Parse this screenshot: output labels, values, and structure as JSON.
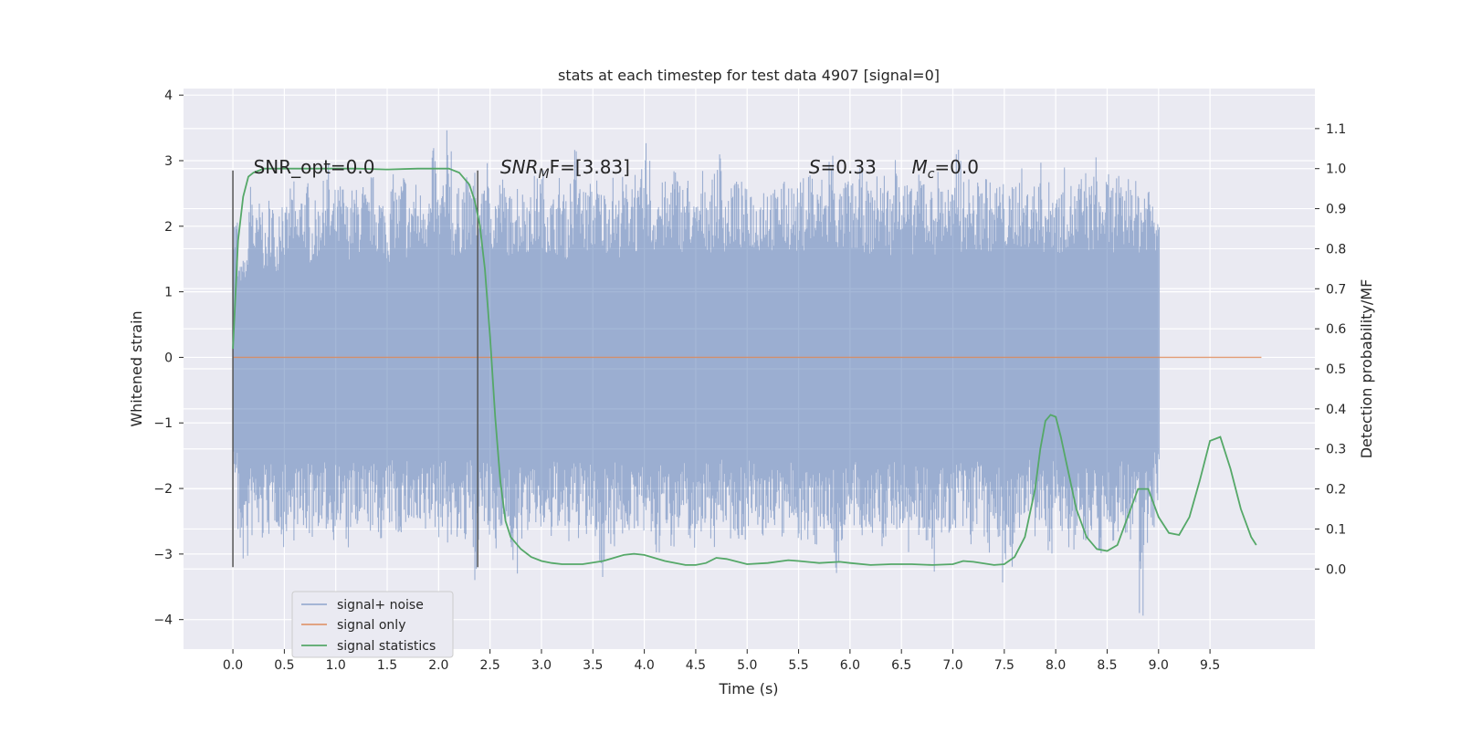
{
  "chart_data": {
    "type": "line",
    "title": "stats at each timestep for test data 4907 [signal=0]",
    "xlabel": "Time (s)",
    "ylabel": "Whitened strain",
    "ylabel_right": "Detection probability/MF",
    "xlim": [
      -0.48,
      10.52
    ],
    "ylim": [
      -4.45,
      4.1
    ],
    "ylim_right": [
      -0.2,
      1.2
    ],
    "x_ticks": [
      0.0,
      0.5,
      1.0,
      1.5,
      2.0,
      2.5,
      3.0,
      3.5,
      4.0,
      4.5,
      5.0,
      5.5,
      6.0,
      6.5,
      7.0,
      7.5,
      8.0,
      8.5,
      9.0,
      9.5
    ],
    "x_tick_labels": [
      "0.0",
      "0.5",
      "1.0",
      "1.5",
      "2.0",
      "2.5",
      "3.0",
      "3.5",
      "4.0",
      "4.5",
      "5.0",
      "5.5",
      "6.0",
      "6.5",
      "7.0",
      "7.5",
      "8.0",
      "8.5",
      "9.0",
      "9.5"
    ],
    "y_ticks": [
      -4,
      -3,
      -2,
      -1,
      0,
      1,
      2,
      3,
      4
    ],
    "y_tick_labels": [
      "−4",
      "−3",
      "−2",
      "−1",
      "0",
      "1",
      "2",
      "3",
      "4"
    ],
    "y2_ticks": [
      0.0,
      0.1,
      0.2,
      0.3,
      0.4,
      0.5,
      0.6,
      0.7,
      0.8,
      0.9,
      1.0,
      1.1
    ],
    "y2_tick_labels": [
      "0.0",
      "0.1",
      "0.2",
      "0.3",
      "0.4",
      "0.5",
      "0.6",
      "0.7",
      "0.8",
      "0.9",
      "1.0",
      "1.1"
    ],
    "grid": true,
    "legend_position": "lower-left",
    "annotations": [
      {
        "text": "SNR_opt=0.0",
        "x": 0.2,
        "y": 2.9,
        "kind": "plain"
      },
      {
        "text": "SNR",
        "sub": "M",
        "tail": "F=[3.83]",
        "x": 2.6,
        "y": 2.9,
        "kind": "math"
      },
      {
        "text": "S",
        "sub": "",
        "tail": "=0.33",
        "x": 5.6,
        "y": 2.9,
        "kind": "math"
      },
      {
        "text": "M",
        "sub": "c",
        "tail": "=0.0",
        "x": 6.6,
        "y": 2.9,
        "kind": "math"
      }
    ],
    "vlines": [
      {
        "x": 0.0,
        "ymin": -3.2,
        "ymax": 2.85
      },
      {
        "x": 2.38,
        "ymin": -3.2,
        "ymax": 2.85
      }
    ],
    "series": [
      {
        "name": "signal+ noise",
        "color": "#4c72b0",
        "axis": "left",
        "envelope_upper": [
          2.2,
          1.4,
          1.5,
          2.7,
          2.2,
          2.4,
          1.9,
          2.5,
          1.9,
          2.6,
          2.3,
          2.7,
          2.3,
          2.6,
          2.7,
          2.2,
          2.4,
          2.7,
          3.0,
          2.5,
          2.6,
          2.7,
          2.4,
          2.6,
          2.6,
          2.7,
          2.5,
          2.8,
          2.6,
          2.5,
          2.3,
          2.8,
          2.6,
          2.9,
          2.4,
          2.7,
          2.6,
          2.8,
          2.6,
          3.2,
          2.6,
          2.8,
          3.5,
          2.4,
          2.6,
          2.8,
          2.7,
          2.9,
          2.5,
          3.2,
          2.7,
          2.6,
          2.8,
          2.7,
          2.5,
          2.8,
          2.6,
          2.7,
          2.5,
          2.8,
          2.9,
          2.7,
          2.5,
          2.6,
          2.8,
          2.4,
          2.8,
          3.3,
          2.7,
          2.6,
          2.7,
          2.8,
          2.6,
          2.7,
          2.8,
          2.5,
          2.8,
          2.7,
          3.0,
          2.6,
          2.9,
          3.3,
          2.5,
          2.8,
          2.7,
          2.6,
          3.1,
          2.8,
          2.7,
          2.8,
          2.4,
          2.6,
          2.9,
          2.7,
          2.8,
          3.2,
          2.7,
          2.6,
          2.9,
          2.7,
          2.6,
          2.8,
          2.5,
          2.7,
          2.8,
          2.7,
          2.6,
          2.9,
          2.7,
          2.8,
          2.6,
          2.7,
          2.8,
          3.0,
          2.6,
          2.8,
          2.7,
          3.3,
          2.7,
          2.6,
          2.8,
          2.7,
          2.6,
          2.9,
          2.7,
          2.6,
          2.8,
          2.9,
          2.7,
          2.6,
          3.7,
          2.8,
          2.7,
          2.6,
          2.8,
          3.0,
          2.7,
          2.6,
          2.9,
          2.8,
          2.7,
          2.6,
          3.4,
          2.7,
          2.8,
          2.6,
          2.7,
          2.9,
          2.7,
          2.6,
          2.8,
          2.7,
          2.5,
          2.8,
          2.9,
          2.6,
          2.8,
          2.7,
          3.0,
          2.6,
          2.7,
          2.8,
          2.6,
          2.9,
          2.7,
          2.6,
          2.8,
          2.9,
          2.7,
          3.1,
          2.6,
          2.8,
          2.7,
          2.9,
          2.6,
          2.8,
          3.0,
          2.7,
          2.6,
          2.8,
          2.7,
          2.6,
          2.9,
          3.2,
          2.7,
          2.8,
          2.6,
          3.0,
          2.7,
          2.8,
          2.6,
          2.7,
          2.9,
          2.8,
          2.6,
          3.0,
          2.7,
          2.8,
          3.1,
          2.6,
          2.4,
          2.2
        ],
        "envelope_lower": [
          -1.9,
          -3.0,
          -3.2,
          -2.8,
          -2.7,
          -2.9,
          -2.6,
          -2.8,
          -2.6,
          -3.0,
          -2.7,
          -2.8,
          -2.6,
          -2.9,
          -2.7,
          -2.8,
          -2.6,
          -2.9,
          -2.7,
          -2.8,
          -2.6,
          -2.7,
          -3.0,
          -2.7,
          -2.8,
          -2.7,
          -2.6,
          -2.7,
          -2.9,
          -2.8,
          -2.7,
          -2.6,
          -2.8,
          -2.7,
          -2.6,
          -2.7,
          -2.9,
          -2.8,
          -2.6,
          -2.7,
          -2.8,
          -2.6,
          -2.9,
          -2.7,
          -2.8,
          -3.0,
          -2.6,
          -3.4,
          -2.8,
          -2.7,
          -2.9,
          -3.1,
          -2.6,
          -2.8,
          -3.0,
          -3.6,
          -2.8,
          -2.7,
          -2.9,
          -2.6,
          -2.8,
          -2.7,
          -2.9,
          -2.6,
          -2.8,
          -3.0,
          -2.7,
          -2.8,
          -2.6,
          -2.9,
          -2.7,
          -2.8,
          -3.6,
          -2.7,
          -2.9,
          -2.6,
          -2.8,
          -2.7,
          -3.0,
          -2.6,
          -2.8,
          -2.7,
          -2.9,
          -3.1,
          -2.7,
          -2.6,
          -2.9,
          -2.8,
          -2.7,
          -2.8,
          -3.2,
          -2.7,
          -2.6,
          -2.8,
          -2.9,
          -2.7,
          -2.6,
          -2.8,
          -2.7,
          -2.9,
          -2.8,
          -2.6,
          -2.7,
          -3.0,
          -2.8,
          -2.7,
          -2.6,
          -2.9,
          -2.8,
          -2.7,
          -2.6,
          -2.8,
          -3.0,
          -2.7,
          -2.9,
          -2.6,
          -2.8,
          -2.7,
          -3.5,
          -2.9,
          -2.6,
          -2.8,
          -2.7,
          -2.9,
          -2.6,
          -2.8,
          -2.7,
          -3.0,
          -2.8,
          -2.6,
          -2.9,
          -2.7,
          -3.1,
          -2.6,
          -2.8,
          -2.7,
          -2.9,
          -3.8,
          -2.6,
          -2.8,
          -2.7,
          -2.9,
          -2.6,
          -2.8,
          -3.0,
          -2.7,
          -2.6,
          -2.9,
          -3.2,
          -2.6,
          -2.8,
          -3.6,
          -2.9,
          -3.3,
          -2.7,
          -2.8,
          -2.6,
          -2.9,
          -2.7,
          -2.8,
          -3.0,
          -2.6,
          -2.8,
          -2.7,
          -2.9,
          -3.1,
          -2.6,
          -2.8,
          -2.7,
          -2.6,
          -3.0,
          -2.8,
          -2.9,
          -2.7,
          -2.6,
          -2.8,
          -3.0,
          -2.7,
          -4.1,
          -2.9,
          -2.6,
          -2.2
        ]
      },
      {
        "name": "signal only",
        "color": "#dd8452",
        "axis": "left",
        "x": [
          0.0,
          10.0
        ],
        "y": [
          0.0,
          0.0
        ]
      },
      {
        "name": "signal statistics",
        "color": "#55a868",
        "axis": "right",
        "x": [
          0.0,
          0.05,
          0.1,
          0.15,
          0.2,
          0.3,
          0.4,
          0.6,
          0.8,
          1.0,
          1.2,
          1.5,
          1.8,
          2.0,
          2.1,
          2.2,
          2.3,
          2.35,
          2.4,
          2.45,
          2.5,
          2.55,
          2.6,
          2.65,
          2.7,
          2.8,
          2.9,
          3.0,
          3.1,
          3.2,
          3.4,
          3.6,
          3.8,
          3.9,
          4.0,
          4.2,
          4.4,
          4.5,
          4.6,
          4.7,
          4.8,
          5.0,
          5.2,
          5.4,
          5.5,
          5.7,
          5.9,
          6.0,
          6.2,
          6.4,
          6.6,
          6.8,
          7.0,
          7.1,
          7.2,
          7.4,
          7.5,
          7.6,
          7.7,
          7.8,
          7.85,
          7.9,
          7.95,
          8.0,
          8.05,
          8.1,
          8.2,
          8.3,
          8.4,
          8.5,
          8.6,
          8.7,
          8.8,
          8.9,
          9.0,
          9.1,
          9.2,
          9.3,
          9.4,
          9.5,
          9.6,
          9.7,
          9.8,
          9.9,
          9.95
        ],
        "y": [
          0.55,
          0.82,
          0.93,
          0.98,
          0.99,
          1.0,
          1.0,
          1.0,
          1.0,
          1.0,
          1.0,
          0.998,
          1.0,
          1.0,
          1.0,
          0.99,
          0.96,
          0.92,
          0.86,
          0.75,
          0.58,
          0.38,
          0.22,
          0.12,
          0.08,
          0.05,
          0.03,
          0.02,
          0.015,
          0.012,
          0.012,
          0.02,
          0.035,
          0.038,
          0.035,
          0.02,
          0.01,
          0.01,
          0.015,
          0.028,
          0.025,
          0.012,
          0.015,
          0.022,
          0.02,
          0.015,
          0.018,
          0.015,
          0.01,
          0.012,
          0.012,
          0.01,
          0.012,
          0.02,
          0.018,
          0.01,
          0.012,
          0.03,
          0.08,
          0.2,
          0.3,
          0.37,
          0.385,
          0.38,
          0.33,
          0.27,
          0.15,
          0.08,
          0.05,
          0.045,
          0.06,
          0.13,
          0.2,
          0.2,
          0.13,
          0.09,
          0.085,
          0.13,
          0.22,
          0.32,
          0.33,
          0.25,
          0.15,
          0.08,
          0.06
        ]
      }
    ]
  }
}
